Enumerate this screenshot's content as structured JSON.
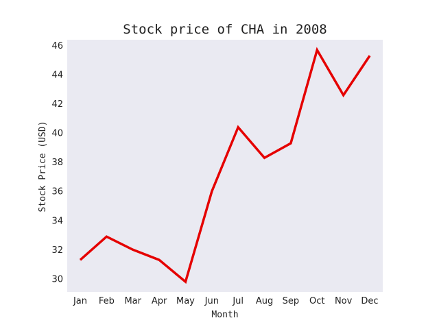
{
  "chart_data": {
    "type": "line",
    "title": "Stock price of CHA in 2008",
    "xlabel": "Month",
    "ylabel": "Stock Price (USD)",
    "categories": [
      "Jan",
      "Feb",
      "Mar",
      "Apr",
      "May",
      "Jun",
      "Jul",
      "Aug",
      "Sep",
      "Oct",
      "Nov",
      "Dec"
    ],
    "series": [
      {
        "values": [
          31.3,
          32.9,
          32.0,
          31.3,
          29.8,
          36.0,
          40.4,
          38.3,
          39.3,
          45.7,
          42.6,
          45.3
        ]
      }
    ],
    "yticks": [
      30,
      32,
      34,
      36,
      38,
      40,
      42,
      44,
      46
    ],
    "ylim": [
      29.1,
      46.4
    ],
    "grid": false,
    "line_color": "#e50000",
    "plot_background": "#eaeaf2"
  }
}
